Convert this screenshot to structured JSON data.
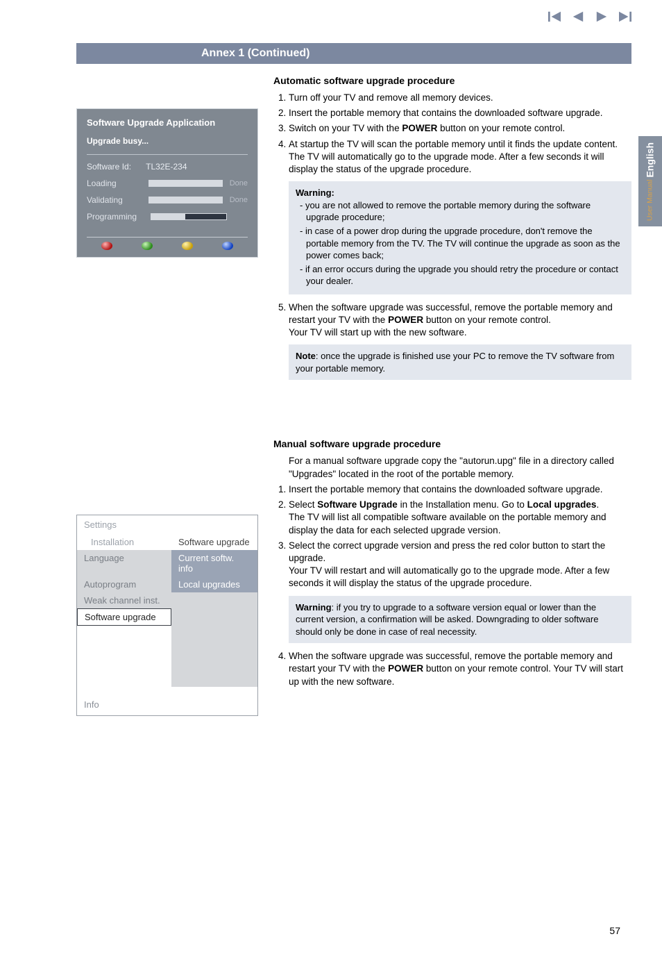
{
  "nav_icon_color": "#7c88a0",
  "section_head": "Annex 1    (Continued)",
  "upgrade_panel": {
    "title": "Software Upgrade Application",
    "busy": "Upgrade busy...",
    "id_label": "Software Id:",
    "id_value": "TL32E-234",
    "rows": [
      {
        "label": "Loading",
        "fill": 100,
        "status": "Done"
      },
      {
        "label": "Validating",
        "fill": 100,
        "status": "Done"
      },
      {
        "label": "Programming",
        "fill": 45,
        "status": ""
      }
    ],
    "dot_colors": [
      "#b01010",
      "#2a8a1a",
      "#c9a007",
      "#1040c0"
    ]
  },
  "auto": {
    "heading": "Automatic software upgrade procedure",
    "steps": {
      "s1": "Turn off your TV and remove all memory devices.",
      "s2": "Insert the portable memory that contains the downloaded software upgrade.",
      "s3_a": "Switch on your TV with the ",
      "s3_b": "POWER",
      "s3_c": " button on your remote control.",
      "s4": "At startup the TV will scan the portable memory until it finds the update content. The TV will automatically go to the upgrade mode. After a few seconds it will display the status of the upgrade procedure."
    },
    "warning_title": "Warning",
    "warning_items": {
      "w1": "you are not allowed to remove the portable memory during the software upgrade procedure;",
      "w2": "in case of a power drop during the upgrade procedure, don't remove the portable memory from the TV. The TV will continue the upgrade as soon as the power comes back;",
      "w3": "if an error occurs during the upgrade you should retry the procedure or contact your dealer."
    },
    "s5_a": "When the software upgrade was successful, remove the portable memory and restart your TV with the ",
    "s5_b": "POWER",
    "s5_c": " button on your remote control.",
    "s5_d": "Your TV will start up with the new software.",
    "note_a": "Note",
    "note_b": ": once the upgrade is finished use your PC to remove the TV software from your portable memory."
  },
  "settings_panel": {
    "header": "Settings",
    "installation": "Installation",
    "software_upgrade_hdr": "Software upgrade",
    "language": "Language",
    "current_info": "Current softw. info",
    "autoprogram": "Autoprogram",
    "local_upgrades": "Local upgrades",
    "weak": "Weak channel inst.",
    "software_upgrade_sel": "Software upgrade",
    "info": "Info"
  },
  "manual": {
    "heading": "Manual software upgrade procedure",
    "intro": "For a manual software upgrade copy the \"autorun.upg\" file in a directory called \"Upgrades\" located in the root of the portable memory.",
    "s1": "Insert the portable memory that contains the downloaded software upgrade.",
    "s2_a": "Select ",
    "s2_b": "Software Upgrade",
    "s2_c": " in the Installation menu. Go to ",
    "s2_d": "Local upgrades",
    "s2_e": ".",
    "s2_f": "The TV will list all compatible software available on the portable memory and display the data for each selected upgrade version.",
    "s3_a": "Select the correct upgrade version and press the red color button to start the upgrade.",
    "s3_b": "Your TV will restart and will automatically go to the upgrade mode. After a few seconds it will display the status of the upgrade procedure.",
    "warn_a": "Warning",
    "warn_b": ": if you try to upgrade to a software version equal or lower than the current version, a confirmation will be asked. Downgrading to older software should only be done in case of real necessity.",
    "s4_a": "When the software upgrade was successful, remove the portable memory and restart your TV with the ",
    "s4_b": "POWER",
    "s4_c": " button on your remote control. Your TV will start up with the new software."
  },
  "side_tab": {
    "eng": "English",
    "sub": "User Manual"
  },
  "page_number": "57"
}
